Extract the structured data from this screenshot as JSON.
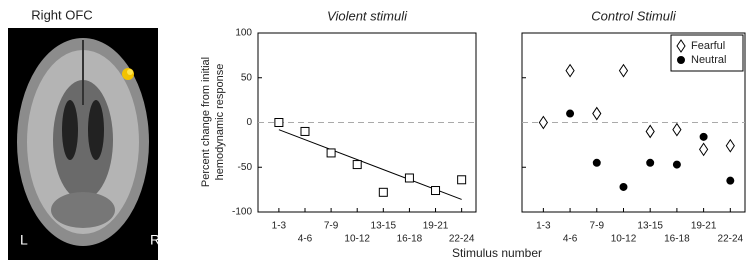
{
  "brain_panel": {
    "title": "Right OFC",
    "left_label": "L",
    "right_label": "R"
  },
  "x_label": "Stimulus number",
  "y_label": [
    "Percent change from initial",
    "hemodynamic response"
  ],
  "chart_data": [
    {
      "type": "scatter",
      "title": "Violent stimuli",
      "categories": [
        "1-3",
        "4-6",
        "7-9",
        "10-12",
        "13-15",
        "16-18",
        "19-21",
        "22-24"
      ],
      "values": [
        0,
        -10,
        -34,
        -47,
        -78,
        -62,
        -76,
        -64
      ],
      "marker": "square",
      "filled": false,
      "color": "#000000",
      "trend": [
        -8,
        -86
      ],
      "reference_line": 0,
      "ylim": [
        -100,
        100
      ],
      "yticks": [
        100,
        50,
        0,
        -50,
        -100
      ],
      "ytick_labels": true
    },
    {
      "type": "scatter",
      "title": "Control Stimuli",
      "categories": [
        "1-3",
        "4-6",
        "7-9",
        "10-12",
        "13-15",
        "16-18",
        "19-21",
        "22-24"
      ],
      "series": [
        {
          "name": "Fearful",
          "color": "#000000",
          "marker": "diamond",
          "filled": false,
          "values": [
            0,
            58,
            10,
            58,
            -10,
            -8,
            -30,
            -26
          ]
        },
        {
          "name": "Neutral",
          "color": "#000000",
          "marker": "circle",
          "filled": true,
          "values": [
            null,
            10,
            -45,
            -72,
            -45,
            -47,
            -16,
            -65
          ]
        }
      ],
      "reference_line": 0,
      "legend": "upper right",
      "ylim": [
        -100,
        100
      ],
      "yticks": [
        100,
        50,
        0,
        -50,
        -100
      ],
      "ytick_labels": false
    }
  ]
}
